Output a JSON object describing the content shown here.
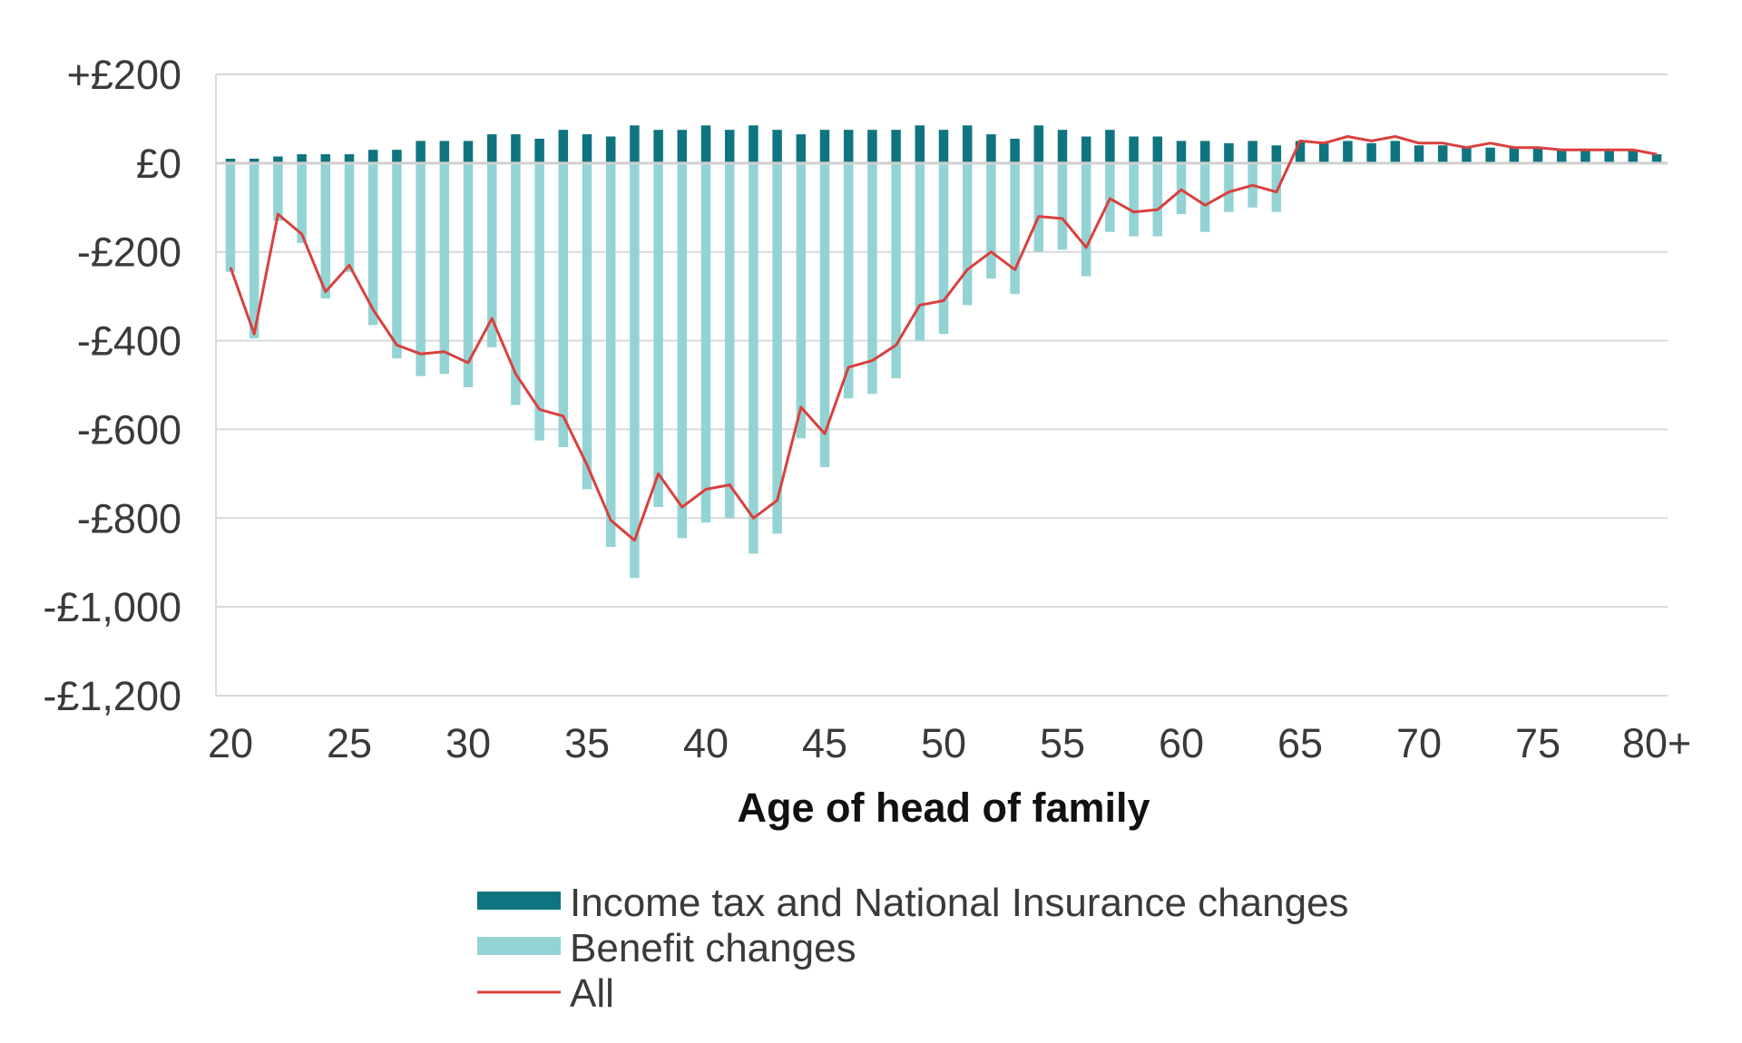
{
  "chart_data": {
    "type": "bar",
    "title": "",
    "xlabel": "Age of head of family",
    "ylabel": "",
    "ylim": [
      -1200,
      200
    ],
    "yticks": [
      200,
      0,
      -200,
      -400,
      -600,
      -800,
      -1000,
      -1200
    ],
    "ytick_labels": [
      "+£200",
      "£0",
      "-£200",
      "-£400",
      "-£600",
      "-£800",
      "-£1,000",
      "-£1,200"
    ],
    "xticks": [
      20,
      25,
      30,
      35,
      40,
      45,
      50,
      55,
      60,
      65,
      70,
      75,
      80
    ],
    "xtick_labels": [
      "20",
      "25",
      "30",
      "35",
      "40",
      "45",
      "50",
      "55",
      "60",
      "65",
      "70",
      "75",
      "80+"
    ],
    "grid": true,
    "legend_position": "bottom",
    "x": [
      20,
      21,
      22,
      23,
      24,
      25,
      26,
      27,
      28,
      29,
      30,
      31,
      32,
      33,
      34,
      35,
      36,
      37,
      38,
      39,
      40,
      41,
      42,
      43,
      44,
      45,
      46,
      47,
      48,
      49,
      50,
      51,
      52,
      53,
      54,
      55,
      56,
      57,
      58,
      59,
      60,
      61,
      62,
      63,
      64,
      65,
      66,
      67,
      68,
      69,
      70,
      71,
      72,
      73,
      74,
      75,
      76,
      77,
      78,
      79,
      80
    ],
    "series": [
      {
        "name": "Income tax and National Insurance changes",
        "kind": "bar",
        "color": "#0e7580",
        "values": [
          10,
          10,
          15,
          20,
          20,
          20,
          30,
          30,
          50,
          50,
          50,
          65,
          65,
          55,
          75,
          65,
          60,
          85,
          75,
          75,
          85,
          75,
          85,
          75,
          65,
          75,
          75,
          75,
          75,
          85,
          75,
          85,
          65,
          55,
          85,
          75,
          60,
          75,
          60,
          60,
          50,
          50,
          45,
          50,
          40,
          50,
          45,
          50,
          45,
          50,
          40,
          40,
          35,
          35,
          35,
          35,
          30,
          30,
          30,
          30,
          20
        ]
      },
      {
        "name": "Benefit changes",
        "kind": "bar",
        "color": "#94d3d4",
        "values": [
          -245,
          -395,
          -130,
          -180,
          -305,
          -245,
          -365,
          -440,
          -480,
          -475,
          -505,
          -415,
          -545,
          -625,
          -640,
          -735,
          -865,
          -935,
          -775,
          -845,
          -810,
          -800,
          -880,
          -835,
          -620,
          -685,
          -530,
          -520,
          -485,
          -400,
          -385,
          -320,
          -260,
          -295,
          -200,
          -195,
          -255,
          -155,
          -165,
          -165,
          -115,
          -155,
          -110,
          -100,
          -110,
          0,
          0,
          0,
          0,
          0,
          0,
          0,
          0,
          0,
          0,
          0,
          0,
          0,
          0,
          0,
          0
        ]
      },
      {
        "name": "All",
        "kind": "line",
        "color": "#d8413e",
        "values": [
          -235,
          -385,
          -115,
          -160,
          -290,
          -230,
          -330,
          -410,
          -430,
          -425,
          -450,
          -350,
          -475,
          -555,
          -570,
          -680,
          -805,
          -850,
          -700,
          -775,
          -735,
          -725,
          -800,
          -760,
          -550,
          -610,
          -460,
          -445,
          -410,
          -320,
          -310,
          -240,
          -200,
          -240,
          -120,
          -125,
          -190,
          -80,
          -110,
          -105,
          -60,
          -95,
          -65,
          -50,
          -65,
          50,
          45,
          60,
          50,
          60,
          45,
          45,
          35,
          45,
          35,
          35,
          30,
          30,
          30,
          30,
          20
        ]
      }
    ]
  }
}
